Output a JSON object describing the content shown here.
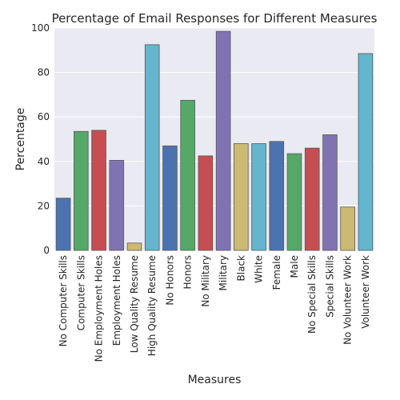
{
  "chart_data": {
    "type": "bar",
    "title": "Percentage of Email Responses for Different Measures",
    "xlabel": "Measures",
    "ylabel": "Percentage",
    "ylim": [
      0,
      100
    ],
    "yticks": [
      0,
      20,
      40,
      60,
      80,
      100
    ],
    "grid": true,
    "background_color": "#eaeaf2",
    "categories": [
      "No Computer Skills",
      "Computer Skills",
      "No Employment Holes",
      "Employment Holes",
      "Low Quality Resume",
      "High Quality Resume",
      "No Honors",
      "Honors",
      "No Military",
      "Military",
      "Black",
      "White",
      "Female",
      "Male",
      "No Special Skills",
      "Special Skills",
      "No Volunteer Work",
      "Volunteer Work"
    ],
    "values": [
      23.5,
      53.5,
      54,
      40.5,
      3.3,
      92.5,
      47,
      67.5,
      42.5,
      98.5,
      48,
      48,
      49,
      43.5,
      46,
      52,
      19.5,
      88.5
    ],
    "colors": [
      "#4c72b0",
      "#55a868",
      "#c44e52",
      "#8172b2",
      "#ccb974",
      "#64b5cd",
      "#4c72b0",
      "#55a868",
      "#c44e52",
      "#8172b2",
      "#ccb974",
      "#64b5cd",
      "#4c72b0",
      "#55a868",
      "#c44e52",
      "#8172b2",
      "#ccb974",
      "#64b5cd"
    ]
  }
}
